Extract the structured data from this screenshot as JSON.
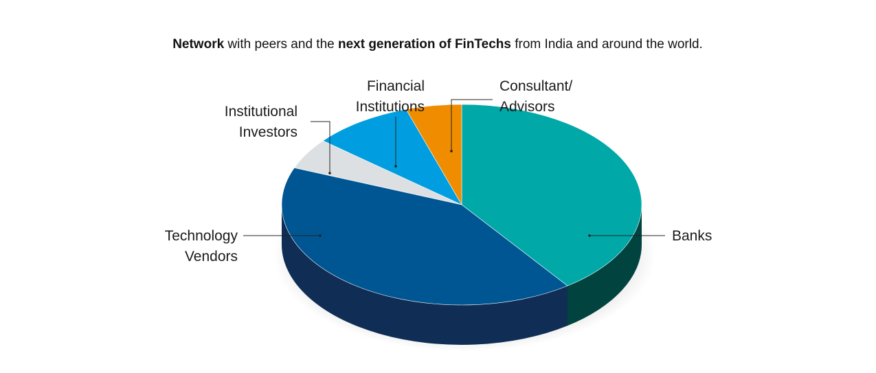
{
  "title_parts": [
    {
      "text": "Network",
      "bold": true
    },
    {
      "text": " with peers and the ",
      "bold": false
    },
    {
      "text": "next generation of FinTechs",
      "bold": true
    },
    {
      "text": " from India and around the world.",
      "bold": false
    }
  ],
  "chart_data": {
    "type": "pie",
    "subtype": "3d",
    "slices": [
      {
        "name": "Banks",
        "label_lines": [
          "Banks"
        ],
        "value": 40,
        "color": "#00a8a8",
        "side_color": "#00433f"
      },
      {
        "name": "Technology Vendors",
        "label_lines": [
          "Technology",
          "Vendors"
        ],
        "value": 41,
        "color": "#005693",
        "side_color": "#0f2d55"
      },
      {
        "name": "Institutional Investors",
        "label_lines": [
          "Institutional",
          "Investors"
        ],
        "value": 5,
        "color": "#dde0e2",
        "side_color": "#b6babc"
      },
      {
        "name": "Financial Institutions",
        "label_lines": [
          "Financial",
          "Institutions"
        ],
        "value": 9,
        "color": "#009ee0",
        "side_color": "#006a9e"
      },
      {
        "name": "Consultant/Advisors",
        "label_lines": [
          "Consultant/",
          "Advisors"
        ],
        "value": 5,
        "color": "#f08c00",
        "side_color": "#a86000"
      }
    ],
    "legend": "none"
  }
}
